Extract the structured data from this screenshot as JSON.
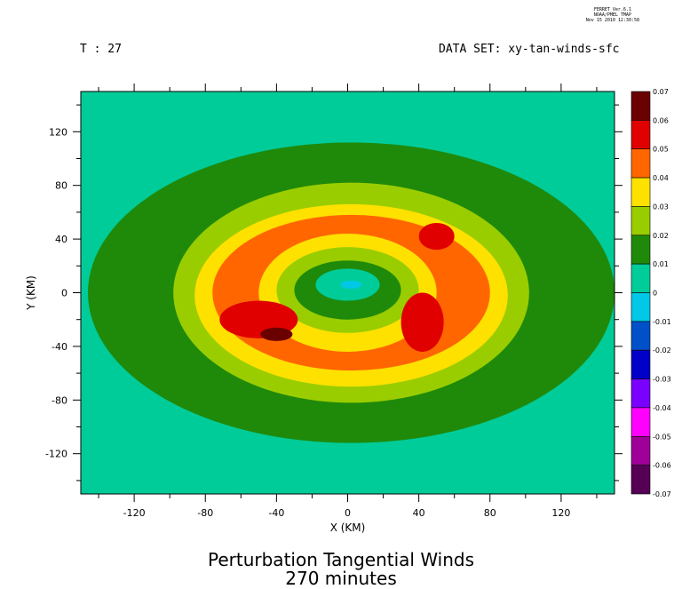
{
  "header": {
    "ferret_lines": [
      "FERRET  Ver.6.1",
      "NOAA/PMEL TMAP",
      "Nov 15 2010 12:30:58"
    ],
    "time_label": "T : 27",
    "dataset_label": "DATA SET: xy-tan-winds-sfc"
  },
  "chart_data": {
    "type": "heatmap",
    "title": "Perturbation Tangential Winds",
    "subtitle": "270 minutes",
    "xlabel": "X (KM)",
    "ylabel": "Y (KM)",
    "xlim": [
      -150,
      150
    ],
    "ylim": [
      -150,
      150
    ],
    "x_ticks": [
      -120,
      -80,
      -40,
      0,
      40,
      80,
      120
    ],
    "y_ticks": [
      120,
      80,
      40,
      0,
      -40,
      -80,
      -120
    ],
    "colorbar": {
      "levels": [
        "0.07",
        "0.06",
        "0.05",
        "0.04",
        "0.03",
        "0.02",
        "0.01",
        "0",
        "-0.01",
        "-0.02",
        "-0.03",
        "-0.04",
        "-0.05",
        "-0.06",
        "-0.07"
      ],
      "colors": [
        "#6b0000",
        "#e00000",
        "#ff6600",
        "#ffe100",
        "#9acd00",
        "#1f8a0a",
        "#00cc99",
        "#00c8e6",
        "#0050c8",
        "#0000c8",
        "#7a00ff",
        "#ff00ff",
        "#a0009a",
        "#550055"
      ]
    },
    "regions": [
      {
        "level": "0.01",
        "color": "#1f8a0a",
        "center": [
          2,
          0
        ],
        "radii": [
          148,
          112
        ]
      },
      {
        "level": "0.02",
        "color": "#9acd00",
        "center": [
          2,
          0
        ],
        "radii": [
          100,
          82
        ]
      },
      {
        "level": "0.03",
        "color": "#ffe100",
        "center": [
          2,
          -2
        ],
        "radii": [
          88,
          68
        ]
      },
      {
        "level": "0.04",
        "color": "#ff6600",
        "center": [
          2,
          0
        ],
        "radii": [
          78,
          58
        ]
      },
      {
        "level": "0.03",
        "color": "#ffe100",
        "center": [
          0,
          0
        ],
        "radii": [
          50,
          44
        ]
      },
      {
        "level": "0.02",
        "color": "#9acd00",
        "center": [
          0,
          2
        ],
        "radii": [
          40,
          32
        ]
      },
      {
        "level": "0.01",
        "color": "#1f8a0a",
        "center": [
          0,
          2
        ],
        "radii": [
          30,
          22
        ]
      },
      {
        "level": "0",
        "color": "#00cc99",
        "center": [
          0,
          6
        ],
        "radii": [
          18,
          12
        ]
      },
      {
        "level": "-0.01",
        "color": "#00c8e6",
        "center": [
          2,
          6
        ],
        "radii": [
          6,
          3
        ]
      }
    ],
    "maxima": [
      {
        "level": "0.05",
        "color": "#e00000",
        "center": [
          -50,
          -20
        ],
        "radii": [
          22,
          14
        ]
      },
      {
        "level": "0.05",
        "color": "#e00000",
        "center": [
          42,
          -22
        ],
        "radii": [
          12,
          22
        ]
      },
      {
        "level": "0.05",
        "color": "#e00000",
        "center": [
          50,
          42
        ],
        "radii": [
          10,
          10
        ]
      },
      {
        "level": "0.06",
        "color": "#6b0000",
        "center": [
          -40,
          -31
        ],
        "radii": [
          9,
          5
        ]
      }
    ]
  }
}
